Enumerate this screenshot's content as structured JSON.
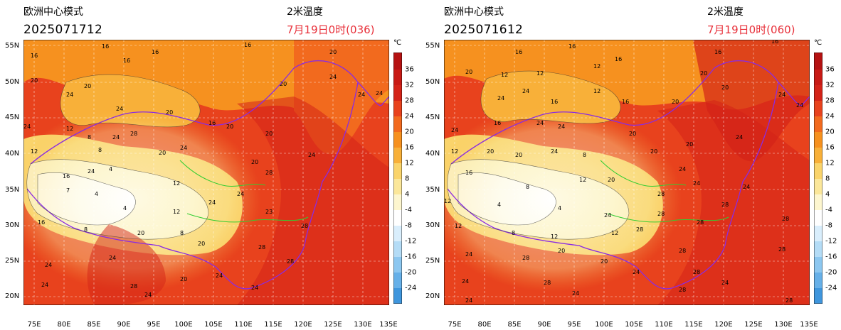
{
  "panels": [
    {
      "title": "欧洲中心模式",
      "init_time": "2025071712",
      "variable": "2米温度",
      "valid_time": "7月19日0时(036)"
    },
    {
      "title": "欧洲中心模式",
      "init_time": "2025071612",
      "variable": "2米温度",
      "valid_time": "7月19日0时(060)"
    }
  ],
  "axes": {
    "lat_labels": [
      "55N",
      "50N",
      "45N",
      "40N",
      "35N",
      "30N",
      "25N",
      "20N"
    ],
    "lon_labels": [
      "75E",
      "80E",
      "85E",
      "90E",
      "95E",
      "100E",
      "105E",
      "110E",
      "115E",
      "120E",
      "125E",
      "130E",
      "135E"
    ]
  },
  "colorbar": {
    "unit": "℃",
    "labels": [
      "36",
      "32",
      "28",
      "24",
      "20",
      "16",
      "12",
      "8",
      "4",
      "-4",
      "-8",
      "-12",
      "-16",
      "-20",
      "-24"
    ],
    "colors": [
      "#b51212",
      "#d42318",
      "#e8421d",
      "#f26a1e",
      "#f6911f",
      "#f8b039",
      "#fad46b",
      "#fbe79a",
      "#fdf6cf",
      "#ffffff",
      "#d9eefc",
      "#b4dcf6",
      "#8cc7f0",
      "#66b0e8",
      "#3f96dd"
    ]
  },
  "contour_labels": [
    "16",
    "20",
    "24",
    "28",
    "12",
    "8",
    "4"
  ]
}
